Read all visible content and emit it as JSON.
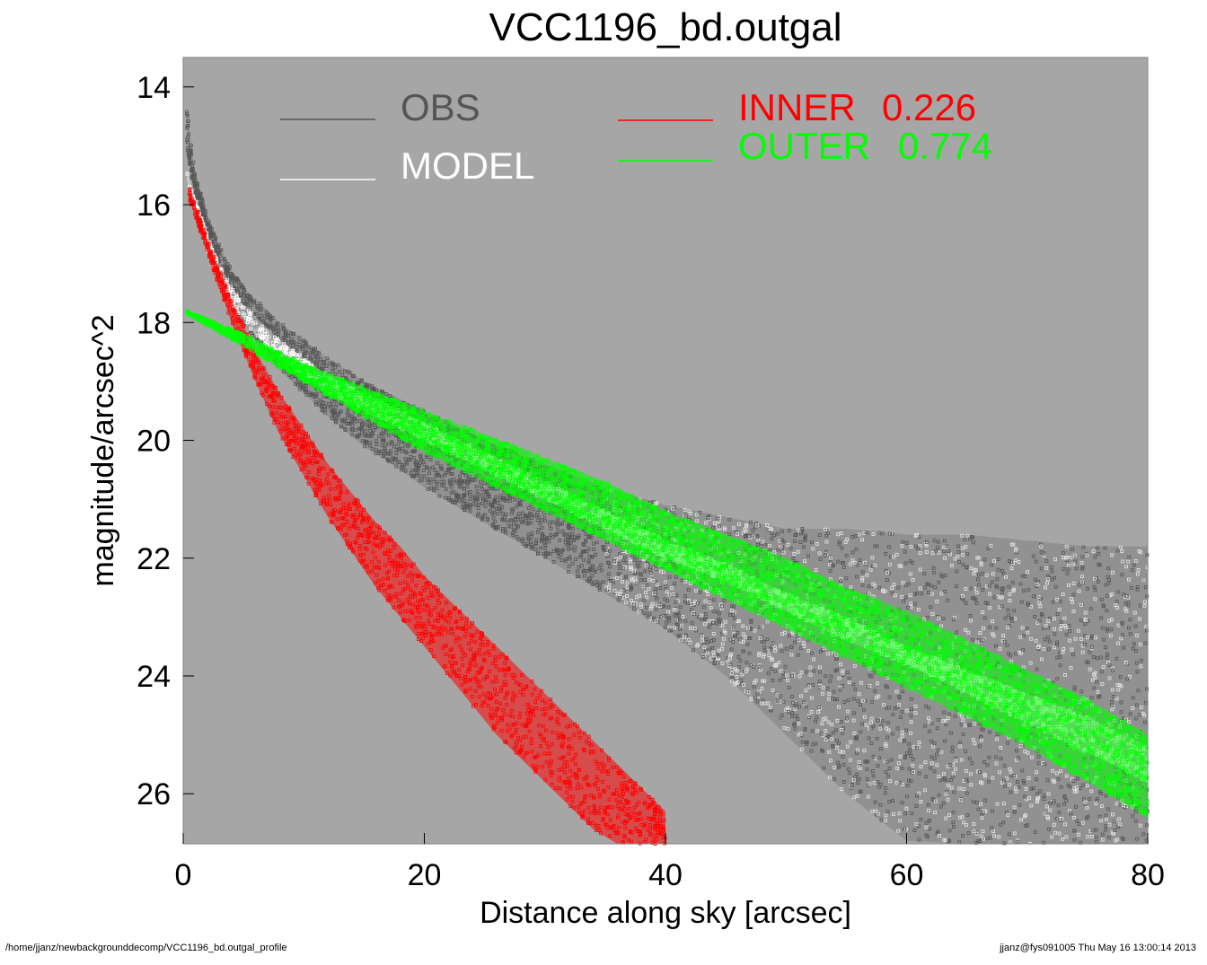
{
  "chart_data": {
    "type": "scatter",
    "title": "VCC1196_bd.outgal",
    "xlabel": "Distance along sky [arcsec]",
    "ylabel": "magnitude/arcsec^2",
    "xlim": [
      0,
      80
    ],
    "ylim": [
      26.85,
      13.5
    ],
    "y_inverted": true,
    "x_ticks": [
      0,
      20,
      40,
      60,
      80
    ],
    "y_ticks": [
      14,
      16,
      18,
      20,
      22,
      24,
      26
    ],
    "background": "#a6a6a6",
    "grid": false,
    "legend": [
      {
        "label": "OBS",
        "color": "#555555"
      },
      {
        "label": "MODEL",
        "color": "#ffffff"
      },
      {
        "label": "INNER",
        "value": "0.226",
        "color": "#ff0000"
      },
      {
        "label": "OUTER",
        "value": "0.774",
        "color": "#00ff00"
      }
    ],
    "legend_placement": "top",
    "series": [
      {
        "name": "OBS",
        "color": "#555555",
        "x": [
          0.3,
          1,
          2,
          3,
          4,
          5,
          6,
          8,
          10,
          12,
          15,
          18,
          20,
          25,
          30,
          35,
          40,
          45,
          50,
          55,
          60,
          65,
          70,
          75,
          80
        ],
        "y_upper": [
          14.4,
          15.5,
          16.2,
          16.7,
          17.1,
          17.4,
          17.6,
          18.0,
          18.3,
          18.6,
          19.0,
          19.3,
          19.5,
          20.0,
          20.4,
          20.8,
          21.1,
          21.3,
          21.5,
          21.5,
          21.6,
          21.6,
          21.7,
          21.8,
          21.8
        ],
        "y_lower": [
          15.0,
          15.9,
          16.6,
          17.2,
          17.6,
          18.0,
          18.3,
          18.8,
          19.2,
          19.6,
          20.1,
          20.5,
          20.8,
          21.4,
          22.0,
          22.6,
          23.2,
          24.0,
          25.0,
          26.0,
          26.8,
          26.85,
          26.85,
          26.85,
          26.85
        ]
      },
      {
        "name": "MODEL",
        "color": "#ffffff",
        "x": [
          0.3,
          1,
          2,
          3,
          4,
          5,
          6,
          8,
          10,
          12,
          15,
          18,
          20,
          25,
          30,
          35,
          40,
          45,
          50,
          55,
          60,
          65,
          70,
          75,
          80
        ],
        "y_upper": [
          15.4,
          15.9,
          16.5,
          17.0,
          17.4,
          17.7,
          17.9,
          18.3,
          18.6,
          18.9,
          19.2,
          19.5,
          19.7,
          20.2,
          20.7,
          21.2,
          21.7,
          22.1,
          22.6,
          23.0,
          23.5,
          23.9,
          24.3,
          24.7,
          25.2
        ],
        "y_lower": [
          15.6,
          16.1,
          16.8,
          17.3,
          17.7,
          18.0,
          18.2,
          18.6,
          18.9,
          19.2,
          19.5,
          19.8,
          20.0,
          20.5,
          21.0,
          21.5,
          22.0,
          22.4,
          22.9,
          23.4,
          23.8,
          24.3,
          24.8,
          25.3,
          25.8
        ]
      },
      {
        "name": "INNER",
        "color": "#ff0000",
        "x": [
          0.5,
          2,
          4,
          6,
          8,
          10,
          12,
          14,
          16,
          18,
          20,
          22,
          24,
          26,
          28,
          30,
          32,
          34,
          36,
          38,
          40
        ],
        "y_upper": [
          15.7,
          16.6,
          17.6,
          18.5,
          19.2,
          19.8,
          20.4,
          20.9,
          21.4,
          21.8,
          22.3,
          22.7,
          23.1,
          23.5,
          23.9,
          24.3,
          24.7,
          25.1,
          25.5,
          25.9,
          26.3
        ],
        "y_lower": [
          15.9,
          16.8,
          18.0,
          19.0,
          19.9,
          20.6,
          21.3,
          21.9,
          22.5,
          23.0,
          23.5,
          24.0,
          24.5,
          25.0,
          25.4,
          25.8,
          26.2,
          26.6,
          26.85,
          26.85,
          26.85
        ]
      },
      {
        "name": "OUTER",
        "color": "#00ff00",
        "x": [
          0.3,
          5,
          10,
          15,
          20,
          25,
          30,
          35,
          40,
          45,
          50,
          55,
          60,
          65,
          70,
          75,
          80
        ],
        "y_upper": [
          17.8,
          18.2,
          18.7,
          19.1,
          19.5,
          19.9,
          20.3,
          20.7,
          21.2,
          21.6,
          22.0,
          22.5,
          22.9,
          23.4,
          23.9,
          24.4,
          25.0
        ],
        "y_lower": [
          17.85,
          18.4,
          19.0,
          19.6,
          20.2,
          20.7,
          21.2,
          21.7,
          22.2,
          22.7,
          23.2,
          23.7,
          24.2,
          24.7,
          25.2,
          25.8,
          26.4
        ]
      }
    ]
  },
  "footer": {
    "left": "/home/jjanz/newbackgrounddecomp/VCC1196_bd.outgal_profile",
    "right": "jjanz@fys091005  Thu May 16 13:00:14 2013"
  }
}
